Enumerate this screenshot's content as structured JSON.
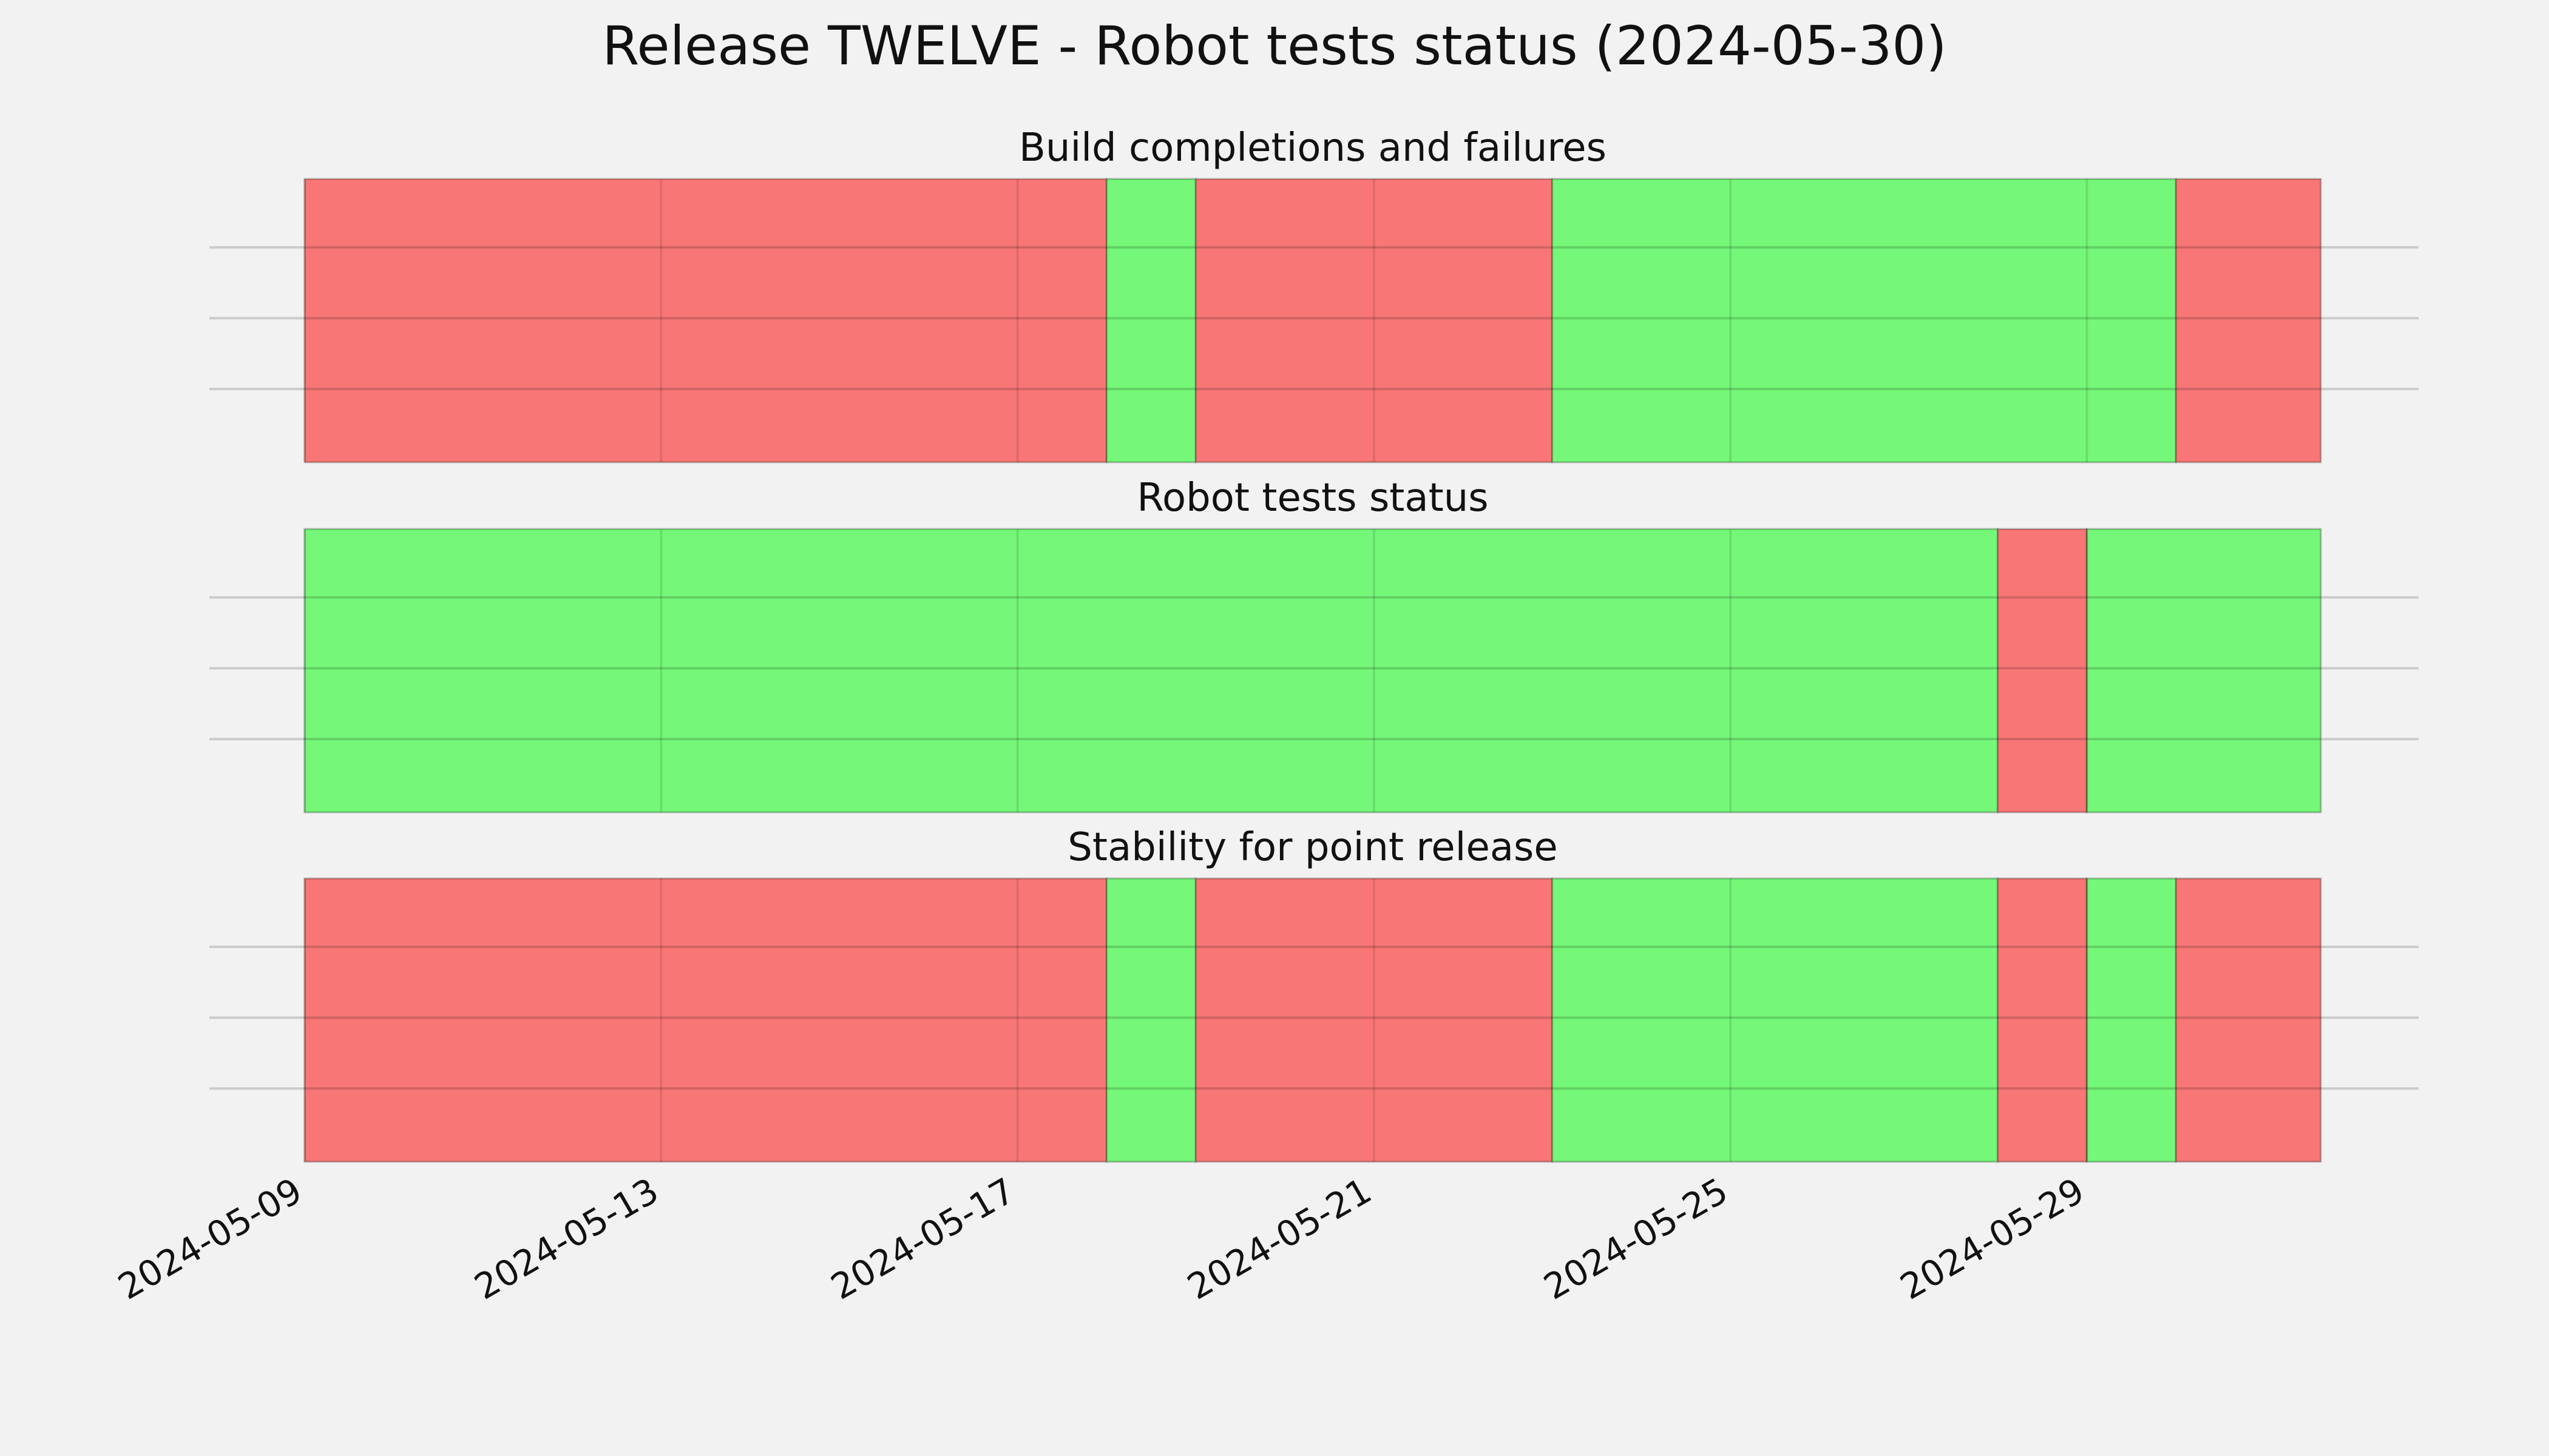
{
  "title": "Release TWELVE - Robot tests status (2024-05-30)",
  "colors": {
    "background": "#f2f2f2",
    "pass": "#75f879",
    "fail": "#f87776",
    "grid": "#cccccc",
    "text": "#111111"
  },
  "chart_data": {
    "type": "timeline",
    "x_range": [
      "2024-05-09",
      "2024-05-31T15:00"
    ],
    "x_ticks": [
      "2024-05-09",
      "2024-05-13",
      "2024-05-17",
      "2024-05-21",
      "2024-05-25",
      "2024-05-29"
    ],
    "grid": true,
    "panels": [
      {
        "title": "Build completions and failures",
        "segments": [
          {
            "start": "2024-05-09",
            "end": "2024-05-18",
            "status": "fail"
          },
          {
            "start": "2024-05-18",
            "end": "2024-05-19",
            "status": "pass"
          },
          {
            "start": "2024-05-19",
            "end": "2024-05-23",
            "status": "fail"
          },
          {
            "start": "2024-05-23",
            "end": "2024-05-30",
            "status": "pass"
          },
          {
            "start": "2024-05-30",
            "end": "2024-05-31T15:00",
            "status": "fail"
          }
        ]
      },
      {
        "title": "Robot tests status",
        "segments": [
          {
            "start": "2024-05-09",
            "end": "2024-05-28",
            "status": "pass"
          },
          {
            "start": "2024-05-28",
            "end": "2024-05-29",
            "status": "fail"
          },
          {
            "start": "2024-05-29",
            "end": "2024-05-31T15:00",
            "status": "pass"
          }
        ]
      },
      {
        "title": "Stability for point release",
        "segments": [
          {
            "start": "2024-05-09",
            "end": "2024-05-18",
            "status": "fail"
          },
          {
            "start": "2024-05-18",
            "end": "2024-05-19",
            "status": "pass"
          },
          {
            "start": "2024-05-19",
            "end": "2024-05-23",
            "status": "fail"
          },
          {
            "start": "2024-05-23",
            "end": "2024-05-28",
            "status": "pass"
          },
          {
            "start": "2024-05-28",
            "end": "2024-05-29",
            "status": "fail"
          },
          {
            "start": "2024-05-29",
            "end": "2024-05-30",
            "status": "pass"
          },
          {
            "start": "2024-05-30",
            "end": "2024-05-31T15:00",
            "status": "fail"
          }
        ]
      }
    ]
  }
}
